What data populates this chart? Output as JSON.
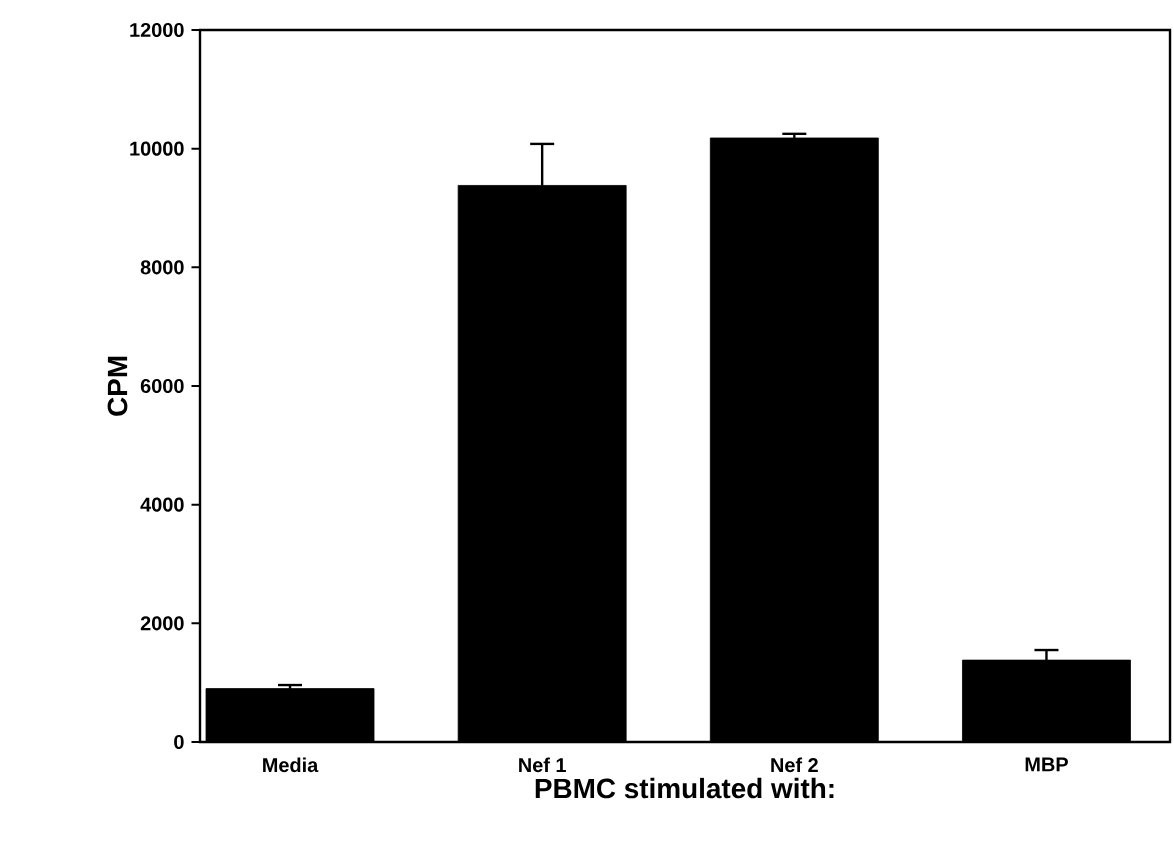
{
  "chart_data": {
    "type": "bar",
    "xlabel": "PBMC stimulated with:",
    "ylabel": "CPM",
    "categories": [
      "Media",
      "Nef 1",
      "Nef 2",
      "MBP"
    ],
    "values": [
      900,
      9380,
      10180,
      1380
    ],
    "errors": [
      60,
      700,
      70,
      170
    ],
    "color": "#000000",
    "ylim": [
      0,
      12000
    ],
    "yticks": [
      0,
      2000,
      4000,
      6000,
      8000,
      10000,
      12000
    ]
  }
}
